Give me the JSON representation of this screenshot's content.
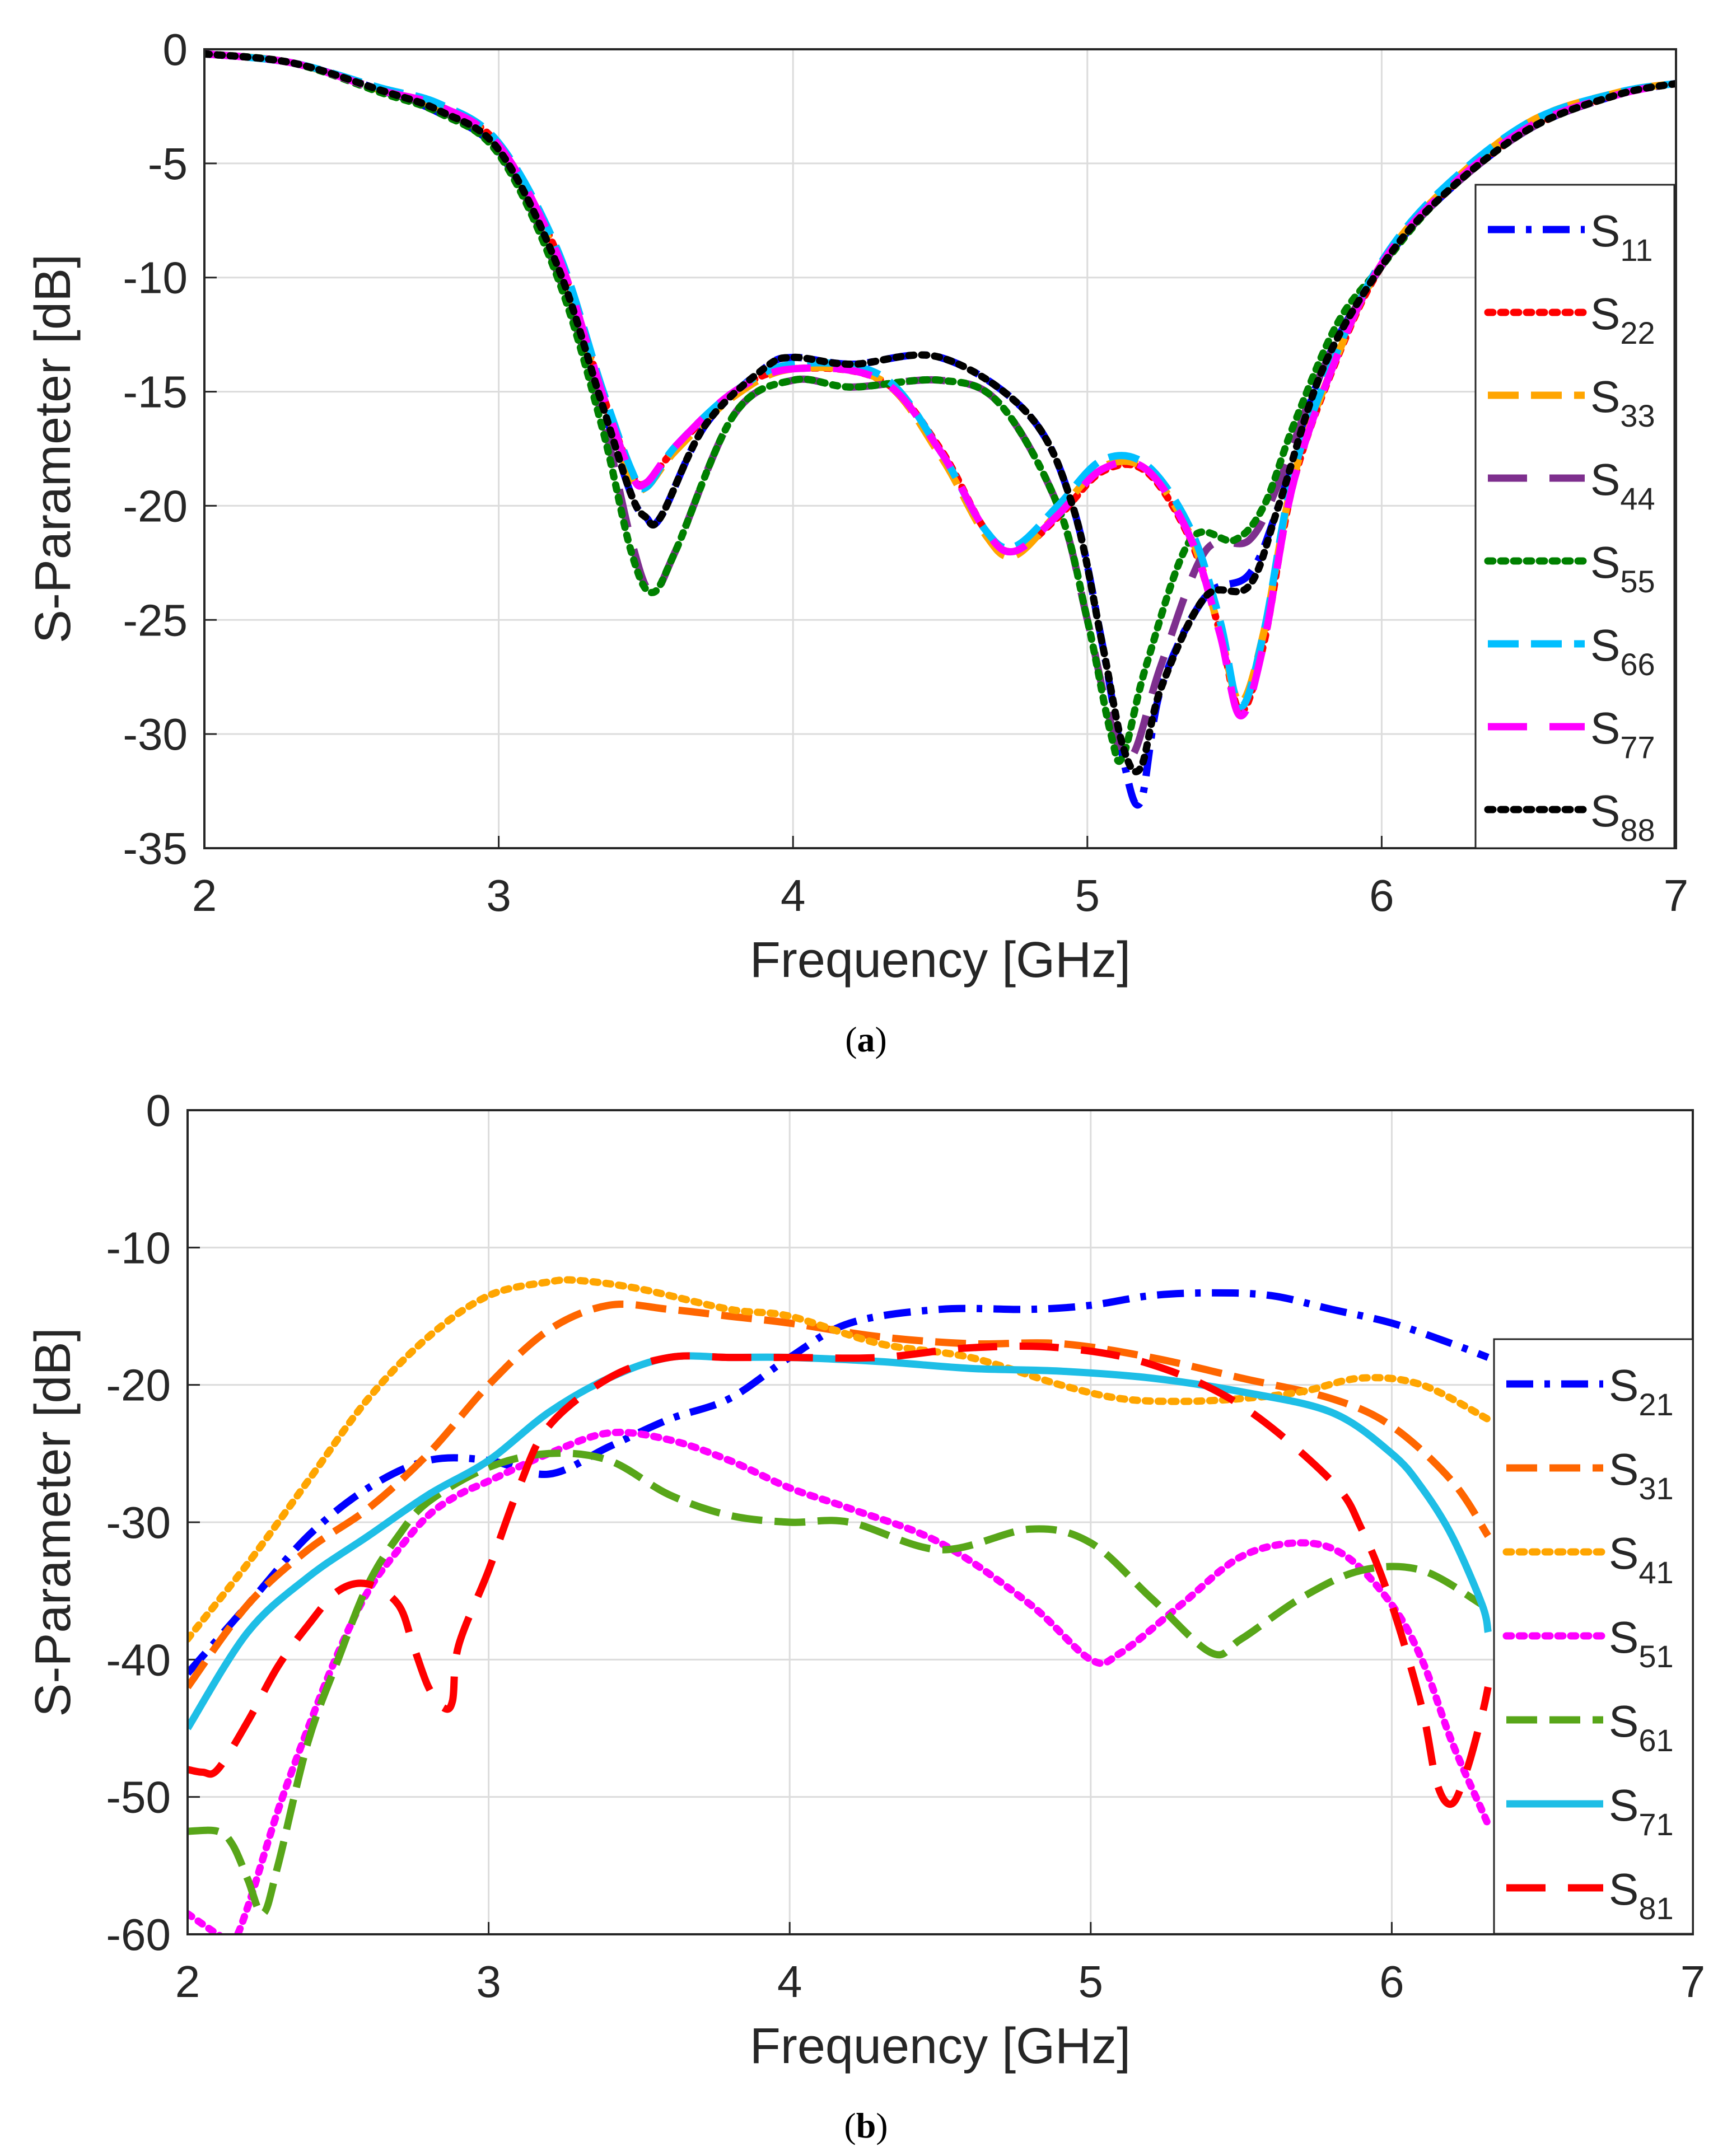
{
  "chart_data": [
    {
      "type": "line",
      "panel": "a",
      "caption": "a",
      "xlabel": "Frequency [GHz]",
      "ylabel": "S-Parameter [dB]",
      "xlim": [
        2,
        7
      ],
      "ylim": [
        -35,
        0
      ],
      "xticks": [
        "2",
        "3",
        "4",
        "5",
        "6",
        "7"
      ],
      "yticks": [
        "0",
        "-5",
        "-10",
        "-15",
        "-20",
        "-25",
        "-30",
        "-35"
      ],
      "grid": true,
      "legend_position": "right",
      "series": [
        {
          "name": "S",
          "sub": "11",
          "color": "#0000ff",
          "dash": "dashdot",
          "x": [
            2.0,
            2.3,
            2.6,
            2.8,
            3.0,
            3.2,
            3.35,
            3.45,
            3.5,
            3.55,
            3.7,
            3.9,
            4.0,
            4.2,
            4.5,
            4.8,
            4.95,
            5.05,
            5.12,
            5.18,
            5.25,
            5.4,
            5.55,
            5.65,
            5.8,
            6.0,
            6.2,
            6.5,
            6.8,
            7.0
          ],
          "y": [
            -0.2,
            -0.6,
            -1.8,
            -2.8,
            -4.5,
            -9.5,
            -15.5,
            -19.5,
            -20.5,
            -20.5,
            -16.5,
            -14,
            -13.5,
            -13.8,
            -13.5,
            -16,
            -20,
            -26,
            -31,
            -33,
            -28,
            -24,
            -23,
            -20,
            -14,
            -9.5,
            -6.5,
            -3.5,
            -2,
            -1.5
          ]
        },
        {
          "name": "S",
          "sub": "22",
          "color": "#ff0000",
          "dash": "dotted",
          "x": [
            2.0,
            2.3,
            2.6,
            2.8,
            3.0,
            3.2,
            3.35,
            3.45,
            3.5,
            3.6,
            3.8,
            4.0,
            4.3,
            4.5,
            4.65,
            4.75,
            4.9,
            5.05,
            5.2,
            5.35,
            5.45,
            5.52,
            5.6,
            5.7,
            5.85,
            6.0,
            6.2,
            6.5,
            6.8,
            7.0
          ],
          "y": [
            -0.2,
            -0.6,
            -1.8,
            -2.5,
            -4.2,
            -9,
            -15,
            -18.5,
            -19,
            -17.5,
            -15,
            -14,
            -14.5,
            -17.5,
            -21,
            -22,
            -20.5,
            -18.5,
            -18.5,
            -21.5,
            -25.5,
            -29,
            -26,
            -19,
            -13.5,
            -9.5,
            -6.5,
            -3.5,
            -2,
            -1.5
          ]
        },
        {
          "name": "S",
          "sub": "33",
          "color": "#ffa500",
          "dash": "dashed",
          "x": [
            2.0,
            2.3,
            2.6,
            2.8,
            3.0,
            3.2,
            3.35,
            3.45,
            3.5,
            3.6,
            3.8,
            4.0,
            4.3,
            4.5,
            4.65,
            4.75,
            4.9,
            5.05,
            5.2,
            5.35,
            5.45,
            5.52,
            5.6,
            5.7,
            5.85,
            6.0,
            6.2,
            6.5,
            6.8,
            7.0
          ],
          "y": [
            -0.2,
            -0.6,
            -1.8,
            -2.6,
            -4.3,
            -9.2,
            -15.2,
            -18.8,
            -19.2,
            -17.6,
            -15.2,
            -14,
            -14.5,
            -17.8,
            -21.2,
            -22.2,
            -20.3,
            -18.3,
            -18.4,
            -21.3,
            -25.5,
            -28.6,
            -25.5,
            -18.8,
            -13.4,
            -9.4,
            -6.3,
            -3.2,
            -1.9,
            -1.5
          ]
        },
        {
          "name": "S",
          "sub": "44",
          "color": "#7e2f8e",
          "dash": "longdash",
          "x": [
            2.0,
            2.3,
            2.6,
            2.8,
            3.0,
            3.2,
            3.35,
            3.45,
            3.52,
            3.6,
            3.8,
            4.0,
            4.2,
            4.5,
            4.7,
            4.9,
            5.0,
            5.08,
            5.15,
            5.25,
            5.4,
            5.55,
            5.65,
            5.8,
            6.0,
            6.2,
            6.5,
            6.8,
            7.0
          ],
          "y": [
            -0.2,
            -0.6,
            -1.8,
            -2.7,
            -4.4,
            -9.8,
            -16,
            -21.5,
            -23.8,
            -22,
            -16,
            -14.5,
            -14.8,
            -14.5,
            -15.5,
            -20,
            -25,
            -29.5,
            -31,
            -27,
            -22,
            -21.5,
            -19,
            -14,
            -9.5,
            -6.5,
            -3.5,
            -2,
            -1.5
          ]
        },
        {
          "name": "S",
          "sub": "55",
          "color": "#008000",
          "dash": "dotted",
          "x": [
            2.0,
            2.3,
            2.6,
            2.8,
            3.0,
            3.2,
            3.35,
            3.45,
            3.52,
            3.6,
            3.8,
            4.0,
            4.2,
            4.5,
            4.7,
            4.9,
            5.0,
            5.08,
            5.12,
            5.2,
            5.35,
            5.5,
            5.6,
            5.7,
            5.85,
            6.0,
            6.2,
            6.5,
            6.8,
            7.0
          ],
          "y": [
            -0.2,
            -0.6,
            -1.9,
            -2.8,
            -4.6,
            -10,
            -16.5,
            -22,
            -23.8,
            -22,
            -16,
            -14.5,
            -14.8,
            -14.5,
            -15.5,
            -20,
            -25,
            -30,
            -31,
            -27,
            -21.5,
            -21.5,
            -20,
            -16.5,
            -12,
            -9.5,
            -6.5,
            -3.5,
            -2,
            -1.5
          ]
        },
        {
          "name": "S",
          "sub": "66",
          "color": "#00bfff",
          "dash": "dashed",
          "x": [
            2.0,
            2.3,
            2.6,
            2.8,
            3.0,
            3.2,
            3.35,
            3.45,
            3.5,
            3.6,
            3.8,
            4.0,
            4.3,
            4.5,
            4.65,
            4.75,
            4.9,
            5.05,
            5.2,
            5.35,
            5.45,
            5.52,
            5.6,
            5.7,
            5.85,
            6.0,
            6.2,
            6.5,
            6.8,
            7.0
          ],
          "y": [
            -0.2,
            -0.6,
            -1.7,
            -2.4,
            -4.1,
            -8.8,
            -14.8,
            -18.4,
            -19.2,
            -17.4,
            -15,
            -13.8,
            -14.3,
            -17.6,
            -21,
            -21.8,
            -20,
            -18,
            -18.2,
            -21,
            -25,
            -28.8,
            -25.5,
            -18.6,
            -13.2,
            -9.3,
            -6.2,
            -3.2,
            -1.9,
            -1.5
          ]
        },
        {
          "name": "S",
          "sub": "77",
          "color": "#ff00ff",
          "dash": "longdash",
          "x": [
            2.0,
            2.3,
            2.6,
            2.8,
            3.0,
            3.2,
            3.35,
            3.45,
            3.5,
            3.6,
            3.8,
            4.0,
            4.3,
            4.5,
            4.65,
            4.75,
            4.9,
            5.05,
            5.2,
            5.35,
            5.45,
            5.52,
            5.6,
            5.7,
            5.85,
            6.0,
            6.2,
            6.5,
            6.8,
            7.0
          ],
          "y": [
            -0.2,
            -0.6,
            -1.8,
            -2.5,
            -4.2,
            -9,
            -15,
            -18.6,
            -19,
            -17.4,
            -15,
            -14,
            -14.5,
            -17.6,
            -21,
            -22,
            -20.4,
            -18.4,
            -18.4,
            -21.4,
            -25.6,
            -29.2,
            -26,
            -19,
            -13.4,
            -9.4,
            -6.4,
            -3.4,
            -2,
            -1.5
          ]
        },
        {
          "name": "S",
          "sub": "88",
          "color": "#000000",
          "dash": "dotted",
          "x": [
            2.0,
            2.3,
            2.6,
            2.8,
            3.0,
            3.2,
            3.35,
            3.45,
            3.5,
            3.55,
            3.7,
            3.9,
            4.0,
            4.2,
            4.5,
            4.8,
            4.95,
            5.05,
            5.12,
            5.18,
            5.25,
            5.4,
            5.55,
            5.65,
            5.8,
            6.0,
            6.2,
            6.5,
            6.8,
            7.0
          ],
          "y": [
            -0.2,
            -0.6,
            -1.8,
            -2.7,
            -4.4,
            -9.5,
            -15.5,
            -19.5,
            -20.5,
            -20.5,
            -16.5,
            -14,
            -13.5,
            -13.8,
            -13.5,
            -16,
            -20,
            -26,
            -30.5,
            -31.5,
            -28,
            -24,
            -23.5,
            -20,
            -14,
            -9.5,
            -6.5,
            -3.5,
            -2,
            -1.5
          ]
        }
      ]
    },
    {
      "type": "line",
      "panel": "b",
      "caption": "b",
      "xlabel": "Frequency [GHz]",
      "ylabel": "S-Parameter [dB]",
      "xlim": [
        2,
        7
      ],
      "ylim": [
        -60,
        0
      ],
      "xticks": [
        "2",
        "3",
        "4",
        "5",
        "6",
        "7"
      ],
      "yticks": [
        "0",
        "-10",
        "-20",
        "-30",
        "-40",
        "-50",
        "-60"
      ],
      "grid": true,
      "legend_position": "right",
      "series": [
        {
          "name": "S",
          "sub": "21",
          "color": "#0000ff",
          "dash": "dashdot",
          "x": [
            2.0,
            2.2,
            2.4,
            2.6,
            2.8,
            3.0,
            3.2,
            3.4,
            3.6,
            3.8,
            4.0,
            4.2,
            4.5,
            4.8,
            5.0,
            5.2,
            5.4,
            5.6,
            5.8,
            6.0,
            6.2,
            6.32
          ],
          "y": [
            -41,
            -36,
            -31,
            -27.5,
            -25.5,
            -25.5,
            -26.5,
            -24.5,
            -22.5,
            -21,
            -18,
            -15.5,
            -14.5,
            -14.5,
            -14.2,
            -13.5,
            -13.3,
            -13.5,
            -14.5,
            -15.5,
            -17,
            -18
          ]
        },
        {
          "name": "S",
          "sub": "31",
          "color": "#ff6600",
          "dash": "dashed",
          "x": [
            2.0,
            2.2,
            2.4,
            2.6,
            2.8,
            3.0,
            3.2,
            3.4,
            3.6,
            3.8,
            4.0,
            4.3,
            4.6,
            4.9,
            5.2,
            5.5,
            5.8,
            6.0,
            6.2,
            6.32
          ],
          "y": [
            -42,
            -36,
            -32,
            -29,
            -25,
            -20,
            -16,
            -14.2,
            -14.5,
            -15,
            -15.5,
            -16.5,
            -17,
            -17,
            -18,
            -19.5,
            -21,
            -23,
            -27,
            -31
          ]
        },
        {
          "name": "S",
          "sub": "41",
          "color": "#ffa500",
          "dash": "dotted",
          "x": [
            2.0,
            2.2,
            2.4,
            2.6,
            2.8,
            3.0,
            3.2,
            3.3,
            3.5,
            3.8,
            4.0,
            4.3,
            4.6,
            4.9,
            5.1,
            5.3,
            5.5,
            5.7,
            5.9,
            6.1,
            6.32
          ],
          "y": [
            -38.5,
            -33,
            -27,
            -21,
            -16.5,
            -13.5,
            -12.5,
            -12.4,
            -13,
            -14.5,
            -15,
            -17,
            -18,
            -20,
            -21,
            -21.2,
            -21,
            -20.5,
            -19.5,
            -20,
            -22.5
          ]
        },
        {
          "name": "S",
          "sub": "51",
          "color": "#ff00ff",
          "dash": "dotted",
          "x": [
            2.0,
            2.1,
            2.15,
            2.2,
            2.3,
            2.4,
            2.5,
            2.6,
            2.7,
            2.8,
            2.9,
            3.0,
            3.2,
            3.4,
            3.6,
            3.8,
            4.0,
            4.2,
            4.5,
            4.8,
            5.0,
            5.1,
            5.3,
            5.5,
            5.7,
            5.85,
            6.0,
            6.1,
            6.2,
            6.3,
            6.32
          ],
          "y": [
            -58.5,
            -60,
            -60.5,
            -58,
            -51,
            -45,
            -39.5,
            -35,
            -32,
            -29.5,
            -28,
            -27,
            -25,
            -23.5,
            -24,
            -25.5,
            -27.5,
            -29,
            -31.5,
            -36,
            -40,
            -39.5,
            -36,
            -32.5,
            -31.5,
            -32.5,
            -36,
            -40,
            -46,
            -51,
            -52
          ]
        },
        {
          "name": "S",
          "sub": "61",
          "color": "#58a619",
          "dash": "dashed",
          "x": [
            2.0,
            2.1,
            2.15,
            2.2,
            2.25,
            2.3,
            2.4,
            2.5,
            2.6,
            2.7,
            2.8,
            3.0,
            3.2,
            3.4,
            3.6,
            3.8,
            4.0,
            4.2,
            4.5,
            4.8,
            5.0,
            5.2,
            5.4,
            5.5,
            5.7,
            5.9,
            6.1,
            6.3
          ],
          "y": [
            -52.5,
            -52.5,
            -53.5,
            -56,
            -58.5,
            -55,
            -46,
            -40,
            -34.5,
            -31,
            -28.5,
            -26,
            -25,
            -25.5,
            -28,
            -29.5,
            -30,
            -30,
            -32,
            -30.5,
            -31.5,
            -35.5,
            -39.5,
            -38.5,
            -35.5,
            -33.5,
            -33.5,
            -36
          ]
        },
        {
          "name": "S",
          "sub": "71",
          "color": "#1ebee6",
          "dash": "solid",
          "x": [
            2.0,
            2.2,
            2.4,
            2.6,
            2.8,
            3.0,
            3.2,
            3.4,
            3.6,
            3.8,
            4.0,
            4.3,
            4.6,
            4.9,
            5.2,
            5.5,
            5.8,
            6.0,
            6.1,
            6.2,
            6.3,
            6.32
          ],
          "y": [
            -45,
            -38,
            -34,
            -31,
            -28,
            -25.5,
            -22,
            -19.5,
            -18,
            -18,
            -18,
            -18.3,
            -18.8,
            -19,
            -19.5,
            -20.5,
            -22,
            -25,
            -27.5,
            -31,
            -36,
            -38
          ]
        },
        {
          "name": "S",
          "sub": "81",
          "color": "#ff0000",
          "dash": "longdash",
          "x": [
            2.0,
            2.05,
            2.1,
            2.2,
            2.3,
            2.4,
            2.5,
            2.6,
            2.7,
            2.75,
            2.8,
            2.85,
            2.88,
            2.9,
            3.0,
            3.1,
            3.2,
            3.4,
            3.6,
            3.8,
            4.0,
            4.3,
            4.6,
            4.9,
            5.2,
            5.5,
            5.8,
            5.9,
            6.0,
            6.1,
            6.15,
            6.2,
            6.25,
            6.3,
            6.32
          ],
          "y": [
            -48,
            -48.2,
            -48,
            -44.5,
            -40.5,
            -37.5,
            -35,
            -34.5,
            -36,
            -39,
            -42,
            -43.5,
            -43,
            -39,
            -33.5,
            -27.5,
            -23,
            -19.5,
            -18,
            -18,
            -18,
            -18,
            -17.3,
            -17.3,
            -18.5,
            -21.5,
            -27,
            -30.5,
            -36,
            -43.5,
            -49,
            -50.5,
            -48,
            -44,
            -42
          ]
        }
      ]
    }
  ]
}
